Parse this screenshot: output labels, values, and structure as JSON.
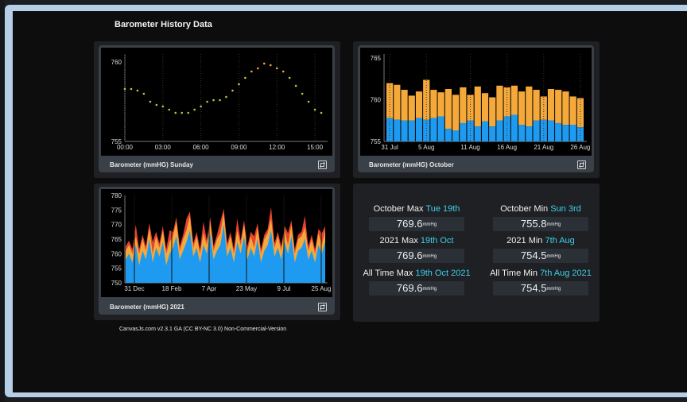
{
  "page_title": "Barometer History Data",
  "colors": {
    "accent": "#3fd0e6",
    "blue": "#1e9bf0",
    "orange": "#f5a93a",
    "red": "#e8432f"
  },
  "charts": {
    "sunday": {
      "label": "Barometer (mmHG) Sunday",
      "expand_icon": "expand-icon"
    },
    "october": {
      "label": "Barometer (mmHG) October",
      "expand_icon": "expand-icon"
    },
    "year": {
      "label": "Barometer (mmHG) 2021",
      "expand_icon": "expand-icon"
    }
  },
  "stats": {
    "oct_max": {
      "label": "October Max ",
      "highlight": "Tue 19th",
      "value": "769.6",
      "unit": "mmHg"
    },
    "oct_min": {
      "label": "October Min ",
      "highlight": "Sun 3rd",
      "value": "755.8",
      "unit": "mmHg"
    },
    "y_max": {
      "label": "2021 Max ",
      "highlight": "19th Oct",
      "value": "769.6",
      "unit": "mmHg"
    },
    "y_min": {
      "label": "2021 Min ",
      "highlight": "7th Aug",
      "value": "754.5",
      "unit": "mmHg"
    },
    "all_max": {
      "label": "All Time Max ",
      "highlight": "19th Oct 2021",
      "value": "769.6",
      "unit": "mmHg"
    },
    "all_min": {
      "label": "All Time Min ",
      "highlight": "7th Aug 2021",
      "value": "754.5",
      "unit": "mmHg"
    }
  },
  "credit": "CanvasJs.com v2.3.1 GA (CC BY-NC 3.0) Non-Commercial-Version",
  "chart_data": [
    {
      "type": "scatter",
      "title": "Barometer (mmHG) Sunday",
      "xlabel": "",
      "ylabel": "",
      "x_ticks": [
        "00:00",
        "03:00",
        "06:00",
        "09:00",
        "12:00",
        "15:00"
      ],
      "y_ticks": [
        755,
        760
      ],
      "xlim": [
        0,
        16
      ],
      "ylim": [
        755,
        760.5
      ],
      "grid": true,
      "series": [
        {
          "x": [
            0.0,
            0.5,
            1.0,
            1.5,
            2.0,
            2.5,
            3.0,
            3.5,
            4.0,
            4.5,
            5.0,
            5.5,
            6.0,
            6.5,
            7.0,
            7.5,
            8.0,
            8.5,
            9.0,
            9.5,
            10.0,
            10.5,
            11.0,
            11.5,
            12.0,
            12.5,
            13.0,
            13.5,
            14.0,
            14.5,
            15.0,
            15.5
          ],
          "values": [
            758.3,
            758.3,
            758.2,
            758.0,
            757.5,
            757.3,
            757.2,
            757.0,
            756.8,
            756.8,
            756.8,
            757.0,
            757.2,
            757.5,
            757.6,
            757.6,
            757.8,
            758.2,
            758.6,
            759.0,
            759.4,
            759.6,
            759.9,
            759.8,
            759.6,
            759.4,
            759.0,
            758.5,
            758.0,
            757.5,
            757.0,
            756.8
          ]
        }
      ]
    },
    {
      "type": "bar",
      "title": "Barometer (mmHG) October",
      "xlabel": "",
      "ylabel": "",
      "x_ticks": [
        "31 Jul",
        "5 Aug",
        "11 Aug",
        "16 Aug",
        "21 Aug",
        "26 Aug"
      ],
      "y_ticks": [
        755,
        760,
        765
      ],
      "ylim": [
        755,
        765.5
      ],
      "categories": [
        "31 Jul",
        "1 Aug",
        "2 Aug",
        "3 Aug",
        "4 Aug",
        "5 Aug",
        "6 Aug",
        "7 Aug",
        "8 Aug",
        "9 Aug",
        "10 Aug",
        "11 Aug",
        "12 Aug",
        "13 Aug",
        "14 Aug",
        "15 Aug",
        "16 Aug",
        "17 Aug",
        "18 Aug",
        "19 Aug",
        "20 Aug",
        "21 Aug",
        "22 Aug",
        "23 Aug",
        "24 Aug",
        "25 Aug",
        "26 Aug"
      ],
      "series": [
        {
          "name": "",
          "values": [
            757.8,
            757.6,
            757.5,
            757.5,
            757.8,
            757.6,
            757.8,
            758.0,
            756.5,
            756.3,
            757.2,
            757.5,
            756.8,
            757.4,
            756.8,
            757.5,
            758.0,
            758.2,
            757.0,
            756.8,
            757.5,
            757.6,
            757.5,
            757.2,
            757.0,
            757.0,
            756.7
          ]
        },
        {
          "name": "",
          "values": [
            762.0,
            761.8,
            761.2,
            760.5,
            761.0,
            762.4,
            761.2,
            760.9,
            761.3,
            760.6,
            761.5,
            760.6,
            761.6,
            760.8,
            760.3,
            761.7,
            761.5,
            761.7,
            761.0,
            761.6,
            761.2,
            760.4,
            761.3,
            761.2,
            761.0,
            760.4,
            760.2
          ]
        }
      ]
    },
    {
      "type": "area",
      "title": "Barometer (mmHG) 2021",
      "xlabel": "",
      "ylabel": "",
      "x_ticks": [
        "31 Dec",
        "18 Feb",
        "7 Apr",
        "23 May",
        "9 Jul",
        "25 Aug"
      ],
      "y_ticks": [
        750,
        755,
        760,
        765,
        770,
        775,
        780
      ],
      "ylim": [
        750,
        780
      ],
      "series": [
        {
          "name": "",
          "values": [
            758,
            760,
            757,
            763,
            756,
            761,
            758,
            765,
            757,
            762,
            759,
            764,
            756,
            760,
            762,
            766,
            758,
            761,
            764,
            768,
            759,
            762,
            757,
            763,
            760,
            767,
            758,
            761,
            763,
            770,
            759,
            762,
            757,
            764,
            760,
            766,
            758,
            762,
            759,
            765,
            757,
            761,
            763,
            768,
            759,
            762,
            758,
            764,
            760,
            766,
            757,
            761,
            762,
            765,
            758,
            761,
            757,
            763,
            760,
            764
          ]
        },
        {
          "name": "",
          "values": [
            761,
            763,
            760,
            766,
            760,
            765,
            761,
            769,
            760,
            766,
            762,
            768,
            760,
            764,
            766,
            771,
            761,
            765,
            768,
            773,
            762,
            766,
            760,
            767,
            763,
            771,
            761,
            765,
            767,
            774,
            762,
            766,
            760,
            768,
            763,
            770,
            761,
            766,
            762,
            769,
            760,
            765,
            767,
            772,
            762,
            766,
            761,
            768,
            763,
            770,
            760,
            765,
            766,
            769,
            761,
            765,
            760,
            767,
            763,
            768
          ]
        }
      ]
    }
  ]
}
